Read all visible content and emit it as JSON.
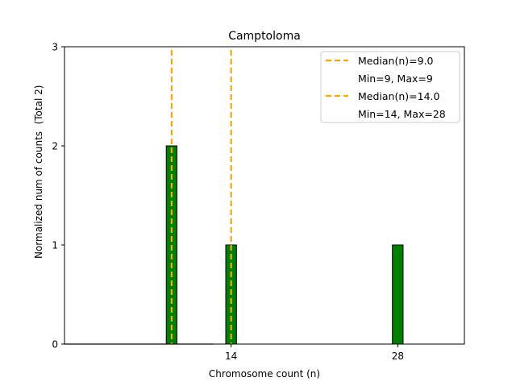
{
  "chart_data": {
    "type": "bar",
    "title": "Camptoloma",
    "xlabel": "Chromosome count (n)",
    "ylabel": "Normalized num of counts",
    "ylabel_note": "(Total 2)",
    "xlim": [
      0,
      33.6
    ],
    "ylim": [
      0,
      3
    ],
    "xticks": [
      14,
      28
    ],
    "yticks": [
      0,
      1,
      2,
      3
    ],
    "bar_color": "#008000",
    "bar_edge_color": "#000000",
    "bar_width": 0.9,
    "x": [
      9,
      14,
      28
    ],
    "values": [
      2,
      1,
      1
    ],
    "median_color": "#FFA500",
    "medians": [
      {
        "value": 9.0,
        "label": "Median(n)=9.0",
        "range_label": "Min=9, Max=9"
      },
      {
        "value": 14.0,
        "label": "Median(n)=14.0",
        "range_label": "Min=14, Max=28"
      }
    ],
    "legend_position": "top-right",
    "grid": false
  }
}
